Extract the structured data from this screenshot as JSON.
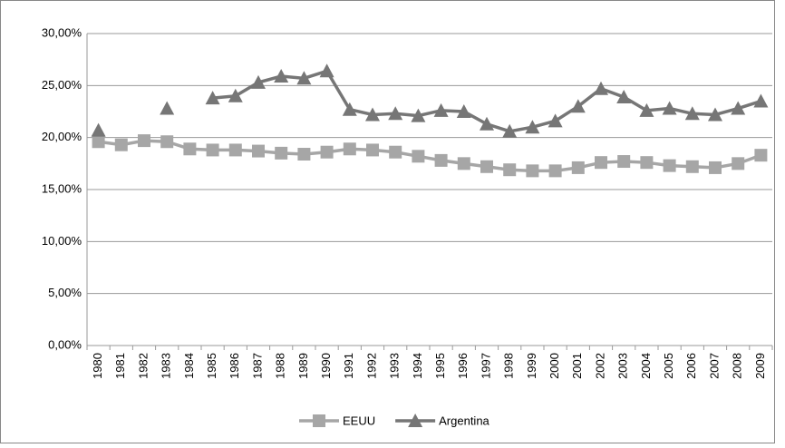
{
  "chart_data": {
    "type": "line",
    "categories": [
      "1980",
      "1981",
      "1982",
      "1983",
      "1984",
      "1985",
      "1986",
      "1987",
      "1988",
      "1989",
      "1990",
      "1991",
      "1992",
      "1993",
      "1994",
      "1995",
      "1996",
      "1997",
      "1998",
      "1999",
      "2000",
      "2001",
      "2002",
      "2003",
      "2004",
      "2005",
      "2006",
      "2007",
      "2008",
      "2009"
    ],
    "series": [
      {
        "name": "EEUU",
        "color": "#a6a6a6",
        "marker": "square",
        "values": [
          19.6,
          19.3,
          19.7,
          19.6,
          18.9,
          18.8,
          18.8,
          18.7,
          18.5,
          18.4,
          18.6,
          18.9,
          18.8,
          18.6,
          18.2,
          17.8,
          17.5,
          17.2,
          16.9,
          16.8,
          16.8,
          17.1,
          17.6,
          17.7,
          17.6,
          17.3,
          17.2,
          17.1,
          17.5,
          18.3
        ]
      },
      {
        "name": "Argentina",
        "color": "#767676",
        "marker": "triangle",
        "values": [
          20.7,
          null,
          null,
          22.8,
          null,
          23.8,
          24.0,
          25.3,
          25.9,
          25.7,
          26.4,
          22.7,
          22.2,
          22.3,
          22.1,
          22.6,
          22.5,
          21.3,
          20.6,
          21.0,
          21.6,
          23.0,
          24.7,
          23.9,
          22.6,
          22.8,
          22.3,
          22.2,
          22.8,
          23.5
        ]
      }
    ],
    "ylim": [
      0,
      30
    ],
    "yticks": [
      {
        "value": 0,
        "label": "0,00%"
      },
      {
        "value": 5,
        "label": "5,00%"
      },
      {
        "value": 10,
        "label": "10,00%"
      },
      {
        "value": 15,
        "label": "15,00%"
      },
      {
        "value": 20,
        "label": "20,00%"
      },
      {
        "value": 25,
        "label": "25,00%"
      },
      {
        "value": 30,
        "label": "30,00%"
      }
    ],
    "grid": true,
    "legend": "bottom"
  }
}
